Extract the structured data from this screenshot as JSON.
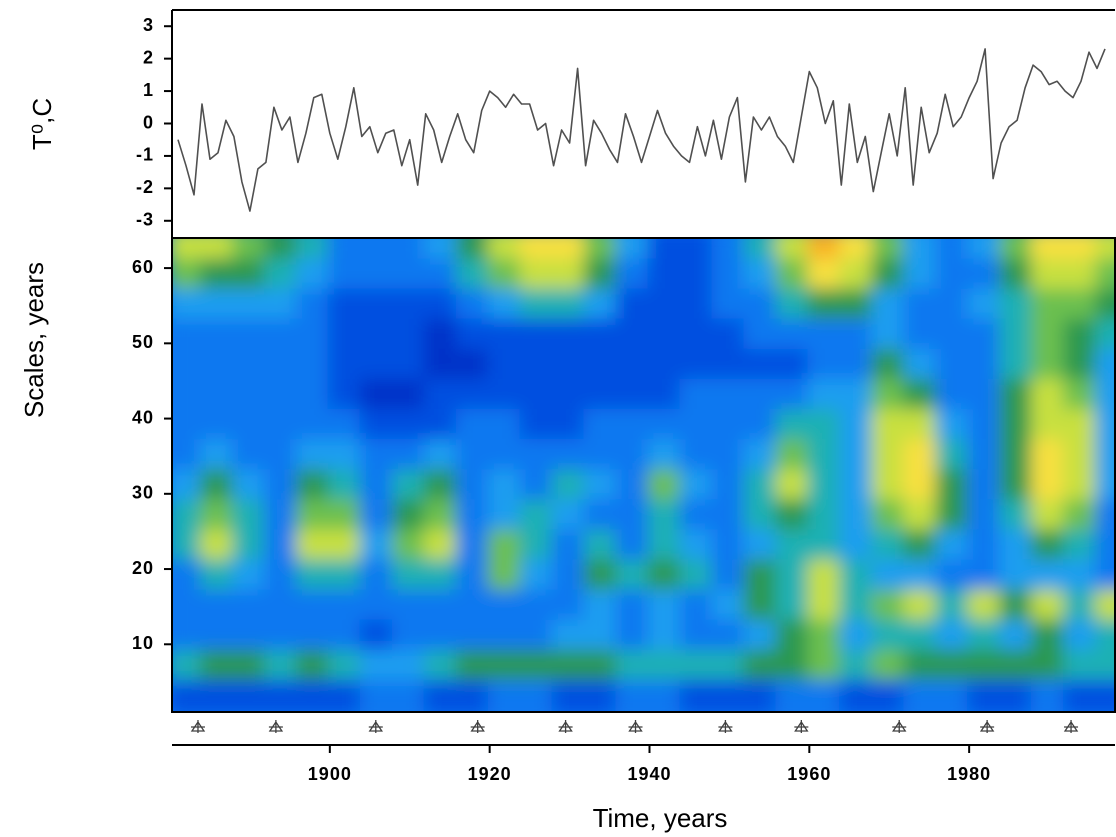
{
  "chart_data": [
    {
      "type": "line",
      "y_label": "T⁰,C",
      "color": "#505050",
      "xlim": [
        1880.25,
        1998.25
      ],
      "ylim": [
        -3.5,
        3.5
      ],
      "yticks": [
        -3,
        -2,
        -1,
        0,
        1,
        2,
        3
      ],
      "x": [
        1881,
        1882,
        1883,
        1884,
        1885,
        1886,
        1887,
        1888,
        1889,
        1890,
        1891,
        1892,
        1893,
        1894,
        1895,
        1896,
        1897,
        1898,
        1899,
        1900,
        1901,
        1902,
        1903,
        1904,
        1905,
        1906,
        1907,
        1908,
        1909,
        1910,
        1911,
        1912,
        1913,
        1914,
        1915,
        1916,
        1917,
        1918,
        1919,
        1920,
        1921,
        1922,
        1923,
        1924,
        1925,
        1926,
        1927,
        1928,
        1929,
        1930,
        1931,
        1932,
        1933,
        1934,
        1935,
        1936,
        1937,
        1938,
        1939,
        1940,
        1941,
        1942,
        1943,
        1944,
        1945,
        1946,
        1947,
        1948,
        1949,
        1950,
        1951,
        1952,
        1953,
        1954,
        1955,
        1956,
        1957,
        1958,
        1959,
        1960,
        1961,
        1962,
        1963,
        1964,
        1965,
        1966,
        1967,
        1968,
        1969,
        1970,
        1971,
        1972,
        1973,
        1974,
        1975,
        1976,
        1977,
        1978,
        1979,
        1980,
        1981,
        1982,
        1983,
        1984,
        1985,
        1986,
        1987,
        1988,
        1989,
        1990,
        1991,
        1992,
        1993,
        1994,
        1995,
        1996,
        1997
      ],
      "values": [
        -0.5,
        -1.3,
        -2.2,
        0.6,
        -1.1,
        -0.9,
        0.1,
        -0.4,
        -1.8,
        -2.7,
        -1.4,
        -1.2,
        0.5,
        -0.2,
        0.2,
        -1.2,
        -0.3,
        0.8,
        0.9,
        -0.3,
        -1.1,
        -0.1,
        1.1,
        -0.4,
        -0.1,
        -0.9,
        -0.3,
        -0.2,
        -1.3,
        -0.5,
        -1.9,
        0.3,
        -0.2,
        -1.2,
        -0.4,
        0.3,
        -0.5,
        -0.9,
        0.4,
        1.0,
        0.8,
        0.5,
        0.9,
        0.6,
        0.6,
        -0.2,
        0.0,
        -1.3,
        -0.2,
        -0.6,
        1.7,
        -1.3,
        0.1,
        -0.3,
        -0.8,
        -1.2,
        0.3,
        -0.4,
        -1.2,
        -0.4,
        0.4,
        -0.3,
        -0.7,
        -1.0,
        -1.2,
        -0.1,
        -1.0,
        0.1,
        -1.1,
        0.2,
        0.8,
        -1.8,
        0.2,
        -0.2,
        0.2,
        -0.4,
        -0.7,
        -1.2,
        0.2,
        1.6,
        1.1,
        0.0,
        0.7,
        -1.9,
        0.6,
        -1.2,
        -0.4,
        -2.1,
        -0.9,
        0.3,
        -1.0,
        1.1,
        -1.9,
        0.5,
        -0.9,
        -0.3,
        0.9,
        -0.1,
        0.2,
        0.8,
        1.3,
        2.3,
        -1.7,
        -0.6,
        -0.1,
        0.1,
        1.1,
        1.8,
        1.6,
        1.2,
        1.3,
        1.0,
        0.8,
        1.3,
        2.2,
        1.7,
        2.3
      ]
    },
    {
      "type": "heatmap",
      "y_label": "Scales, years",
      "x_label": "Time, years",
      "xlim": [
        1880.25,
        1998.25
      ],
      "ylim": [
        1,
        64
      ],
      "xticks": [
        1900,
        1920,
        1940,
        1960,
        1980
      ],
      "yticks": [
        10,
        20,
        30,
        40,
        50,
        60
      ],
      "zlim": [
        0,
        10
      ],
      "colormap": [
        "#001890",
        "#0030c8",
        "#0050e0",
        "#0a78f0",
        "#1a9ef0",
        "#1eb0b4",
        "#2a9850",
        "#6cc050",
        "#c8e040",
        "#f8e040",
        "#f8b020"
      ],
      "marker_color": "#404040",
      "markers": [
        1883.5,
        1893.25,
        1905.75,
        1918.5,
        1929.5,
        1938.25,
        1949.5,
        1959,
        1971.25,
        1982.25,
        1992.75
      ],
      "x": [
        1882,
        1886,
        1890,
        1894,
        1898,
        1902,
        1906,
        1910,
        1914,
        1918,
        1922,
        1926,
        1930,
        1934,
        1938,
        1942,
        1946,
        1950,
        1954,
        1958,
        1962,
        1966,
        1970,
        1974,
        1978,
        1982,
        1986,
        1990,
        1994,
        1998
      ],
      "y": [
        63,
        59,
        55,
        51,
        47,
        43,
        39,
        35,
        31,
        27,
        23,
        19,
        15,
        11,
        7,
        3
      ],
      "z": [
        [
          8,
          8,
          7,
          6,
          5,
          3,
          3,
          3,
          4,
          6,
          8,
          9,
          9,
          7,
          4,
          2,
          2,
          3,
          5,
          8,
          10,
          9,
          7,
          4,
          3,
          4,
          7,
          9,
          9,
          8
        ],
        [
          7,
          6,
          6,
          5,
          4,
          3,
          3,
          3,
          3,
          5,
          7,
          8,
          8,
          6,
          3,
          2,
          2,
          3,
          4,
          7,
          9,
          8,
          6,
          4,
          3,
          3,
          6,
          8,
          8,
          7
        ],
        [
          4,
          4,
          4,
          4,
          3,
          2,
          2,
          2,
          2,
          3,
          4,
          5,
          5,
          4,
          2,
          2,
          2,
          3,
          3,
          5,
          6,
          6,
          4,
          3,
          3,
          4,
          5,
          7,
          7,
          6
        ],
        [
          3,
          3,
          3,
          3,
          3,
          2,
          2,
          2,
          1,
          2,
          2,
          2,
          2,
          2,
          2,
          2,
          2,
          2,
          3,
          3,
          3,
          3,
          4,
          3,
          3,
          3,
          5,
          7,
          6,
          5
        ],
        [
          3,
          3,
          3,
          3,
          3,
          2,
          2,
          2,
          1,
          1,
          2,
          2,
          2,
          2,
          2,
          2,
          2,
          2,
          2,
          2,
          3,
          3,
          6,
          4,
          3,
          3,
          5,
          7,
          6,
          4
        ],
        [
          3,
          3,
          3,
          3,
          3,
          2,
          1,
          1,
          2,
          2,
          2,
          2,
          2,
          2,
          2,
          2,
          3,
          3,
          3,
          3,
          4,
          4,
          7,
          6,
          3,
          3,
          6,
          8,
          7,
          4
        ],
        [
          3,
          3,
          3,
          3,
          3,
          3,
          2,
          2,
          2,
          3,
          3,
          2,
          2,
          3,
          3,
          3,
          3,
          3,
          3,
          5,
          5,
          4,
          8,
          8,
          4,
          3,
          6,
          8,
          8,
          4
        ],
        [
          3,
          4,
          3,
          3,
          4,
          4,
          3,
          3,
          4,
          3,
          3,
          3,
          3,
          3,
          3,
          4,
          3,
          3,
          4,
          7,
          5,
          4,
          8,
          9,
          5,
          3,
          6,
          9,
          8,
          4
        ],
        [
          4,
          6,
          4,
          3,
          6,
          5,
          3,
          5,
          6,
          3,
          4,
          3,
          5,
          4,
          3,
          7,
          4,
          3,
          5,
          8,
          5,
          4,
          8,
          9,
          6,
          3,
          6,
          9,
          8,
          4
        ],
        [
          5,
          7,
          5,
          3,
          7,
          7,
          3,
          6,
          7,
          3,
          4,
          5,
          4,
          3,
          3,
          5,
          3,
          3,
          5,
          6,
          5,
          4,
          7,
          8,
          6,
          3,
          5,
          8,
          7,
          3
        ],
        [
          5,
          8,
          5,
          3,
          8,
          8,
          4,
          7,
          8,
          3,
          7,
          5,
          3,
          5,
          3,
          5,
          4,
          3,
          4,
          5,
          5,
          4,
          5,
          6,
          4,
          3,
          4,
          6,
          5,
          3
        ],
        [
          3,
          5,
          4,
          3,
          5,
          5,
          3,
          5,
          5,
          3,
          7,
          4,
          3,
          6,
          5,
          6,
          5,
          3,
          6,
          5,
          8,
          5,
          4,
          4,
          3,
          3,
          4,
          4,
          4,
          3
        ],
        [
          3,
          3,
          3,
          3,
          3,
          3,
          3,
          3,
          3,
          3,
          3,
          3,
          3,
          4,
          3,
          4,
          3,
          4,
          6,
          5,
          8,
          5,
          7,
          8,
          5,
          8,
          6,
          8,
          5,
          8
        ],
        [
          3,
          3,
          3,
          3,
          3,
          3,
          2,
          3,
          3,
          3,
          3,
          3,
          4,
          4,
          3,
          4,
          3,
          3,
          4,
          6,
          7,
          4,
          5,
          5,
          4,
          5,
          4,
          6,
          4,
          5
        ],
        [
          5,
          6,
          6,
          5,
          6,
          5,
          4,
          4,
          5,
          6,
          6,
          6,
          6,
          6,
          5,
          5,
          5,
          5,
          6,
          6,
          7,
          5,
          7,
          6,
          6,
          6,
          6,
          6,
          5,
          5
        ],
        [
          2,
          2,
          2,
          2,
          2,
          2,
          3,
          3,
          2,
          2,
          3,
          3,
          2,
          2,
          3,
          3,
          2,
          2,
          2,
          3,
          3,
          2,
          2,
          3,
          3,
          2,
          2,
          3,
          2,
          2
        ]
      ]
    }
  ]
}
